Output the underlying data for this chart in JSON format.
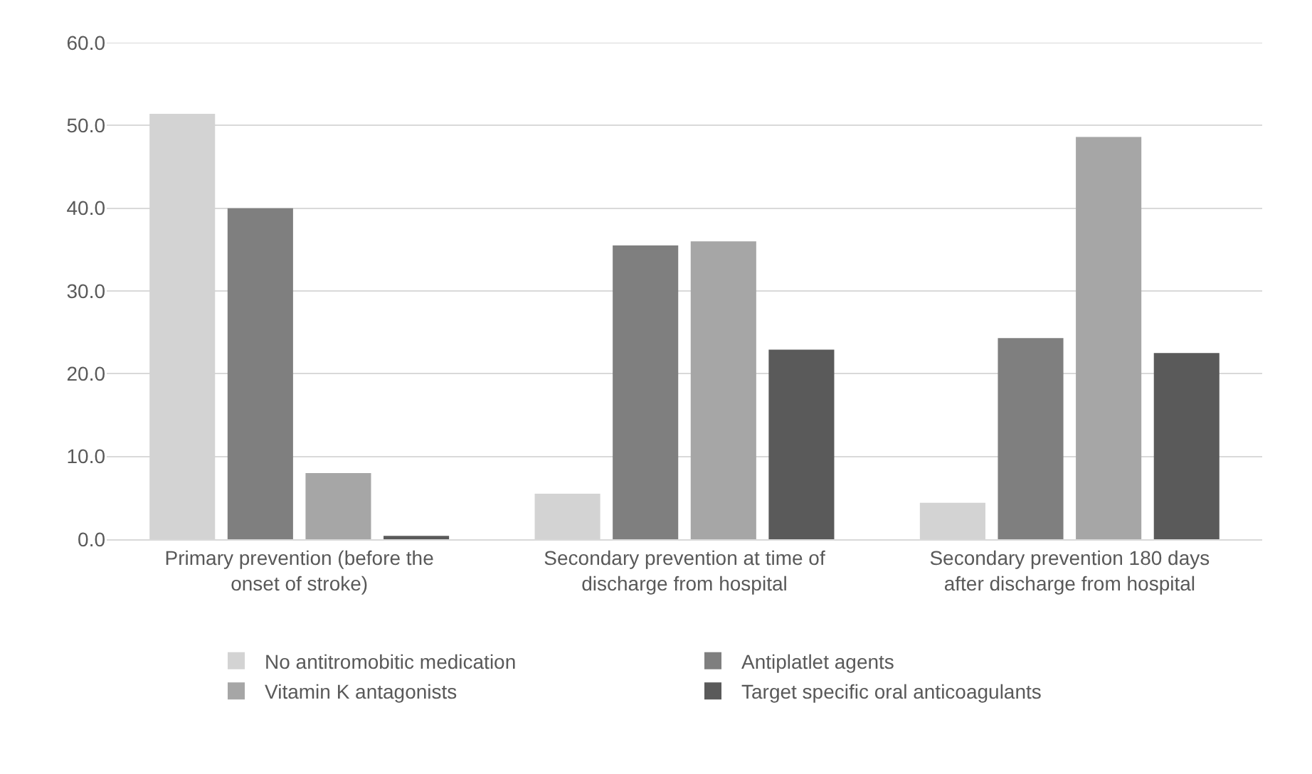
{
  "chart_data": {
    "type": "bar",
    "categories": [
      "Primary prevention (before the onset of stroke)",
      "Secondary prevention at time of discharge from hospital",
      "Secondary prevention 180 days after discharge from hospital"
    ],
    "series": [
      {
        "name": "No antitromobitic medication",
        "color": "#d3d3d3",
        "values": [
          51.4,
          5.5,
          4.4
        ]
      },
      {
        "name": "Antiplatlet agents",
        "color": "#7f7f7f",
        "values": [
          40.0,
          35.5,
          24.3
        ]
      },
      {
        "name": "Vitamin K antagonists",
        "color": "#a6a6a6",
        "values": [
          8.0,
          36.0,
          48.6
        ]
      },
      {
        "name": "Target specific oral anticoagulants",
        "color": "#5a5a5a",
        "values": [
          0.4,
          22.9,
          22.5
        ]
      }
    ],
    "ylim": [
      0,
      60
    ],
    "yticks": [
      {
        "value": 0,
        "label": "0.0"
      },
      {
        "value": 10,
        "label": "10.0"
      },
      {
        "value": 20,
        "label": "20.0"
      },
      {
        "value": 30,
        "label": "30.0"
      },
      {
        "value": 40,
        "label": "40.0"
      },
      {
        "value": 50,
        "label": "50.0"
      },
      {
        "value": 60,
        "label": "60.0"
      }
    ],
    "grid": "y",
    "legend": "bottom"
  }
}
